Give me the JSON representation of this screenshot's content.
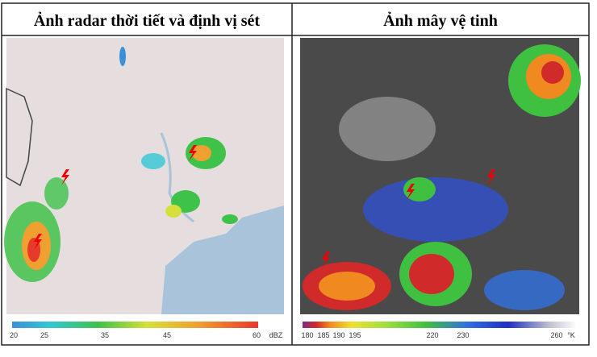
{
  "panels": [
    {
      "title": "Ảnh radar thời tiết và định vị sét",
      "colorbar": {
        "ticks": [
          "20",
          "25",
          "35",
          "45",
          "60"
        ],
        "unit": "dBZ"
      }
    },
    {
      "title": "Ảnh mây vệ tinh",
      "colorbar": {
        "ticks": [
          "180",
          "185",
          "190",
          "195",
          "220",
          "230",
          "260"
        ],
        "unit": "°K"
      }
    }
  ]
}
